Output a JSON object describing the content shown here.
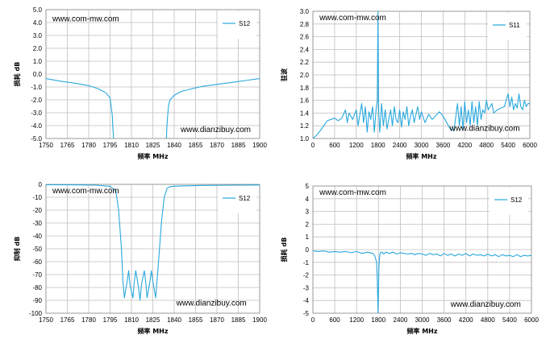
{
  "chart_data": [
    {
      "type": "line",
      "xlabel": "频率 MHz",
      "ylabel": "损耗 dB",
      "xlim": [
        1750,
        1900
      ],
      "ylim": [
        -5,
        5
      ],
      "xticks": [
        "1750",
        "1765",
        "1780",
        "1795",
        "1810",
        "1825",
        "1840",
        "1855",
        "1870",
        "1885",
        "1900"
      ],
      "yticks": [
        "5.0",
        "4.0",
        "3.0",
        "2.0",
        "1.0",
        "0.0",
        "-1.0",
        "-2.0",
        "-3.0",
        "-4.0",
        "-5.0"
      ],
      "grid": true,
      "legend": "top-right",
      "watermarks": [
        "www.com-mw.com",
        "www.dianzibuy.com"
      ],
      "series": [
        {
          "name": "S12",
          "color": "#29a8dd",
          "x": [
            1750,
            1760,
            1770,
            1780,
            1787,
            1792,
            1795,
            1796.5,
            1797,
            1797.5
          ],
          "y": [
            -0.35,
            -0.55,
            -0.7,
            -0.9,
            -1.15,
            -1.45,
            -1.85,
            -3.2,
            -4.2,
            -5.0
          ]
        },
        {
          "name": "",
          "color": "#29a8dd",
          "x": [
            1834.5,
            1835,
            1836,
            1837,
            1840,
            1845,
            1852,
            1860,
            1870,
            1880,
            1890,
            1900
          ],
          "y": [
            -5.0,
            -3.8,
            -2.5,
            -2.0,
            -1.65,
            -1.35,
            -1.15,
            -0.95,
            -0.8,
            -0.65,
            -0.5,
            -0.35
          ]
        }
      ]
    },
    {
      "type": "line",
      "xlabel": "频率 MHz",
      "ylabel": "驻波",
      "xlim": [
        0,
        6000
      ],
      "ylim": [
        1.0,
        3.0
      ],
      "xticks": [
        "0",
        "600",
        "1200",
        "1800",
        "2400",
        "3000",
        "3600",
        "4200",
        "4800",
        "5400",
        "6000"
      ],
      "yticks": [
        "3.0",
        "2.8",
        "2.6",
        "2.4",
        "2.2",
        "2.0",
        "1.8",
        "1.6",
        "1.4",
        "1.2",
        "1.0"
      ],
      "grid": true,
      "legend": "top-right",
      "watermarks": [
        "www.com-mw.com",
        "www.dianzibuy.com"
      ],
      "series": [
        {
          "name": "S11",
          "color": "#29a8dd",
          "x": [
            0,
            100,
            200,
            300,
            400,
            500,
            600,
            700,
            800,
            900,
            950,
            1000,
            1100,
            1200,
            1250,
            1300,
            1350,
            1400,
            1450,
            1500,
            1550,
            1600,
            1650,
            1700,
            1750,
            1780,
            1800,
            1820,
            1850,
            1900,
            1950,
            2000,
            2050,
            2100,
            2150,
            2200,
            2250,
            2300,
            2350,
            2400,
            2450,
            2500,
            2550,
            2600,
            2650,
            2700,
            2750,
            2800,
            2850,
            2900,
            2950,
            3000,
            3100,
            3200,
            3300,
            3400,
            3500,
            3600,
            3700,
            3800,
            3900,
            4000,
            4050,
            4100,
            4150,
            4200,
            4250,
            4300,
            4350,
            4400,
            4450,
            4500,
            4550,
            4600,
            4650,
            4700,
            4750,
            4800,
            4850,
            4900,
            4950,
            5000,
            5100,
            5200,
            5300,
            5350,
            5400,
            5450,
            5500,
            5550,
            5600,
            5650,
            5700,
            5750,
            5800,
            5850,
            5900,
            5950,
            6000
          ],
          "y": [
            1.0,
            1.05,
            1.12,
            1.2,
            1.28,
            1.3,
            1.32,
            1.28,
            1.32,
            1.45,
            1.25,
            1.4,
            1.3,
            1.45,
            1.2,
            1.38,
            1.55,
            1.25,
            1.5,
            1.1,
            1.42,
            1.3,
            1.5,
            1.1,
            1.48,
            1.6,
            3.0,
            1.4,
            1.1,
            1.55,
            1.2,
            1.45,
            1.15,
            1.3,
            1.45,
            1.2,
            1.5,
            1.3,
            1.25,
            1.45,
            1.18,
            1.42,
            1.3,
            1.5,
            1.2,
            1.35,
            1.45,
            1.25,
            1.38,
            1.5,
            1.3,
            1.42,
            1.25,
            1.38,
            1.3,
            1.36,
            1.42,
            1.35,
            1.25,
            1.15,
            1.12,
            1.55,
            1.2,
            1.5,
            1.15,
            1.58,
            1.25,
            1.45,
            1.2,
            1.58,
            1.25,
            1.5,
            1.2,
            1.58,
            1.3,
            1.45,
            1.4,
            1.6,
            1.45,
            1.5,
            1.55,
            1.4,
            1.45,
            1.48,
            1.5,
            1.62,
            1.7,
            1.5,
            1.65,
            1.45,
            1.55,
            1.48,
            1.7,
            1.5,
            1.45,
            1.6,
            1.5,
            1.55,
            1.55
          ]
        }
      ]
    },
    {
      "type": "line",
      "xlabel": "频率 MHz",
      "ylabel": "抑制 dB",
      "xlim": [
        1750,
        1900
      ],
      "ylim": [
        -100,
        0
      ],
      "xticks": [
        "1750",
        "1765",
        "1780",
        "1795",
        "1810",
        "1825",
        "1840",
        "1855",
        "1870",
        "1885",
        "1900"
      ],
      "yticks": [
        "0",
        "-10",
        "-20",
        "-30",
        "-40",
        "-50",
        "-60",
        "-70",
        "-80",
        "-90",
        "-100"
      ],
      "grid": true,
      "legend": "top-right",
      "watermarks": [
        "www.com-mw.com",
        "www.dianzibuy.com"
      ],
      "series": [
        {
          "name": "S12",
          "color": "#29a8dd",
          "x": [
            1750,
            1770,
            1785,
            1795,
            1799,
            1801,
            1803,
            1804,
            1805,
            1807,
            1808,
            1809,
            1811,
            1812,
            1813,
            1815,
            1816,
            1817,
            1819,
            1820,
            1821,
            1823,
            1824,
            1825,
            1827,
            1829,
            1831,
            1833,
            1835,
            1837,
            1839,
            1845,
            1860,
            1880,
            1900
          ],
          "y": [
            -0.3,
            -0.4,
            -0.6,
            -1.5,
            -5,
            -20,
            -50,
            -75,
            -88,
            -75,
            -67,
            -78,
            -88,
            -76,
            -67,
            -80,
            -90,
            -78,
            -67,
            -76,
            -88,
            -75,
            -67,
            -75,
            -88,
            -60,
            -30,
            -10,
            -3,
            -1.8,
            -1.5,
            -1.2,
            -0.8,
            -0.6,
            -0.5
          ]
        }
      ]
    },
    {
      "type": "line",
      "xlabel": "频率 MHz",
      "ylabel": "损耗 dB",
      "xlim": [
        0,
        6000
      ],
      "ylim": [
        -5,
        5
      ],
      "xticks": [
        "0",
        "600",
        "1200",
        "1800",
        "2400",
        "3000",
        "3600",
        "4200",
        "4800",
        "5400",
        "6000"
      ],
      "yticks": [
        "5",
        "4",
        "3",
        "2",
        "1",
        "0",
        "-1",
        "-2",
        "-3",
        "-4",
        "-5"
      ],
      "grid": true,
      "legend": "top-right",
      "watermarks": [
        "www.com-mw.com",
        "www.dianzibuy.com"
      ],
      "series": [
        {
          "name": "S12",
          "color": "#29a8dd",
          "x": [
            0,
            150,
            300,
            450,
            600,
            750,
            900,
            1050,
            1200,
            1350,
            1500,
            1650,
            1700,
            1750,
            1770,
            1790,
            1810,
            1830,
            1850,
            1900,
            1950,
            2000,
            2100,
            2200,
            2300,
            2400,
            2500,
            2600,
            2700,
            2800,
            2900,
            3000,
            3100,
            3200,
            3300,
            3400,
            3500,
            3600,
            3700,
            3800,
            3900,
            4000,
            4100,
            4200,
            4300,
            4400,
            4500,
            4600,
            4700,
            4800,
            4900,
            5000,
            5100,
            5200,
            5300,
            5400,
            5500,
            5600,
            5700,
            5800,
            5900,
            6000
          ],
          "y": [
            -0.1,
            -0.15,
            -0.1,
            -0.2,
            -0.15,
            -0.2,
            -0.15,
            -0.25,
            -0.15,
            -0.3,
            -0.2,
            -0.3,
            -0.5,
            -1.0,
            -2.5,
            -5.0,
            -1.5,
            -0.5,
            -0.25,
            -0.2,
            -0.35,
            -0.2,
            -0.3,
            -0.2,
            -0.35,
            -0.25,
            -0.3,
            -0.35,
            -0.3,
            -0.4,
            -0.3,
            -0.35,
            -0.45,
            -0.3,
            -0.4,
            -0.35,
            -0.5,
            -0.3,
            -0.45,
            -0.35,
            -0.5,
            -0.35,
            -0.45,
            -0.3,
            -0.5,
            -0.35,
            -0.45,
            -0.4,
            -0.5,
            -0.35,
            -0.5,
            -0.4,
            -0.55,
            -0.4,
            -0.5,
            -0.45,
            -0.55,
            -0.4,
            -0.55,
            -0.45,
            -0.5,
            -0.45
          ]
        }
      ]
    }
  ]
}
